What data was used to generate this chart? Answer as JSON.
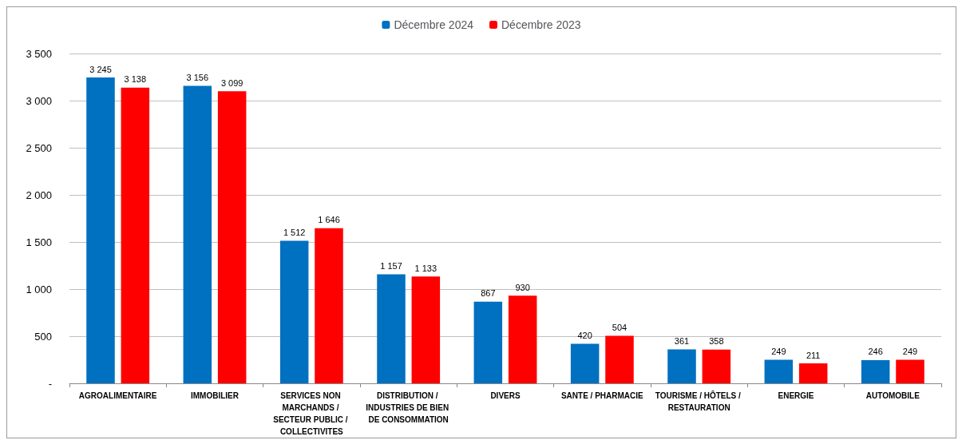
{
  "chart_data": {
    "type": "bar",
    "categories": [
      "AGROALIMENTAIRE",
      "IMMOBILIER",
      "SERVICES NON MARCHANDS / SECTEUR PUBLIC / COLLECTIVITES",
      "DISTRIBUTION / INDUSTRIES DE BIEN DE CONSOMMATION",
      "DIVERS",
      "SANTE / PHARMACIE",
      "TOURISME / HÔTELS / RESTAURATION",
      "ENERGIE",
      "AUTOMOBILE"
    ],
    "series": [
      {
        "name": "Décembre 2024",
        "color": "#0070c0",
        "values": [
          3245,
          3156,
          1512,
          1157,
          867,
          420,
          361,
          249,
          246
        ],
        "value_labels": [
          "3 245",
          "3 156",
          "1 512",
          "1 157",
          "867",
          "420",
          "361",
          "249",
          "246"
        ]
      },
      {
        "name": "Décembre 2023",
        "color": "#ff0000",
        "values": [
          3138,
          3099,
          1646,
          1133,
          930,
          504,
          358,
          211,
          249
        ],
        "value_labels": [
          "3 138",
          "3 099",
          "1 646",
          "1 133",
          "930",
          "504",
          "358",
          "211",
          "249"
        ]
      }
    ],
    "ylim": [
      0,
      3500
    ],
    "yticks": [
      {
        "value": 0,
        "label": "-"
      },
      {
        "value": 500,
        "label": "500"
      },
      {
        "value": 1000,
        "label": "1 000"
      },
      {
        "value": 1500,
        "label": "1 500"
      },
      {
        "value": 2000,
        "label": "2 000"
      },
      {
        "value": 2500,
        "label": "2 500"
      },
      {
        "value": 3000,
        "label": "3 000"
      },
      {
        "value": 3500,
        "label": "3 500"
      }
    ],
    "grid": "y",
    "legend": "top"
  }
}
